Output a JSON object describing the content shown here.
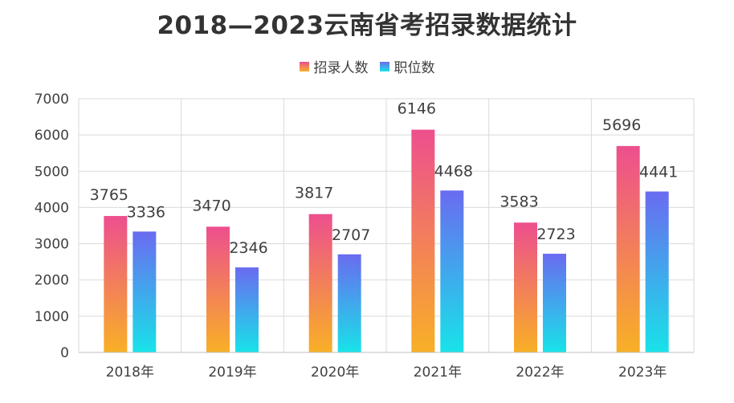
{
  "chart_data": {
    "type": "bar",
    "title": "2018—2023云南省考招录数据统计",
    "categories": [
      "2018年",
      "2019年",
      "2020年",
      "2021年",
      "2022年",
      "2023年"
    ],
    "series": [
      {
        "name": "招录人数",
        "values": [
          3765,
          3470,
          3817,
          6146,
          3583,
          5696
        ],
        "color_top": "#ed4f8e",
        "color_bottom": "#f8b026"
      },
      {
        "name": "职位数",
        "values": [
          3336,
          2346,
          2707,
          4468,
          2723,
          4441
        ],
        "color_top": "#6a6bf0",
        "color_bottom": "#18e3e9"
      }
    ],
    "ylim": [
      0,
      7000
    ],
    "yticks": [
      0,
      1000,
      2000,
      3000,
      4000,
      5000,
      6000,
      7000
    ],
    "grid": true,
    "legend_position": "top-center",
    "data_labels": true
  }
}
